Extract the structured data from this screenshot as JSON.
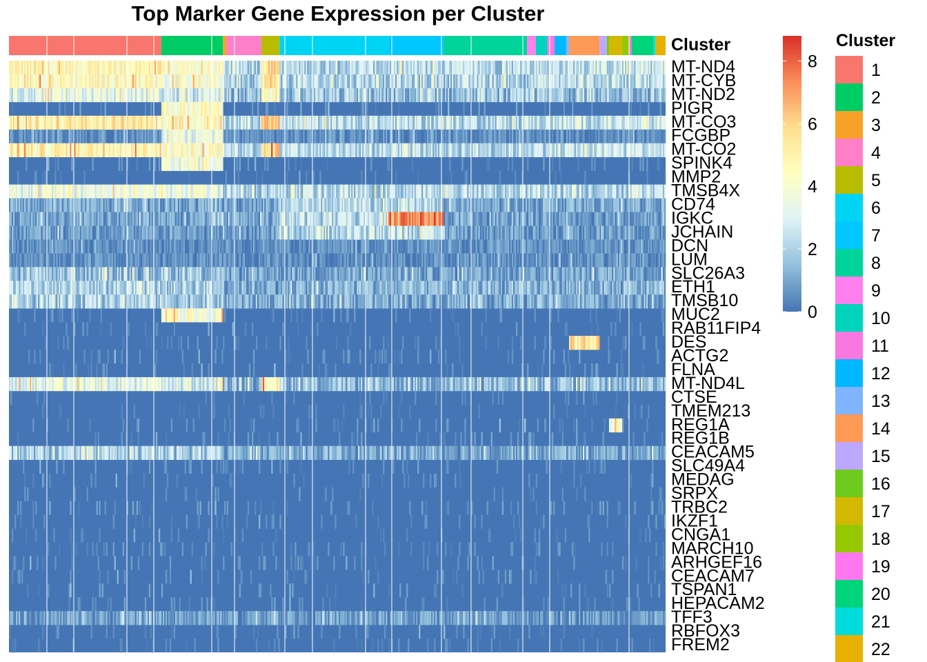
{
  "chart_data": {
    "type": "heatmap",
    "title": "Top Marker Gene Expression per Cluster",
    "annotation_label": "Cluster",
    "legend_title": "Cluster",
    "genes": [
      "MT-ND4",
      "MT-CYB",
      "MT-ND2",
      "PIGR",
      "MT-CO3",
      "FCGBP",
      "MT-CO2",
      "SPINK4",
      "MMP2",
      "TMSB4X",
      "CD74",
      "IGKC",
      "JCHAIN",
      "DCN",
      "LUM",
      "SLC26A3",
      "ETH1",
      "TMSB10",
      "MUC2",
      "RAB11FIP4",
      "DES",
      "ACTG2",
      "FLNA",
      "MT-ND4L",
      "CTSE",
      "TMEM213",
      "REG1A",
      "REG1B",
      "CEACAM5",
      "SLC49A4",
      "MEDAG",
      "SRPX",
      "TRBC2",
      "IKZF1",
      "CNGA1",
      "MARCH10",
      "ARHGEF16",
      "CEACAM7",
      "TSPAN1",
      "HEPACAM2",
      "TFF3",
      "RBFOX3",
      "FREM2"
    ],
    "clusters": [
      {
        "label": "1",
        "color": "#F8766D",
        "cells": 210
      },
      {
        "label": "2",
        "color": "#00CC66",
        "cells": 85
      },
      {
        "label": "3",
        "color": "#F8A128",
        "cells": 5
      },
      {
        "label": "4",
        "color": "#FF7FC8",
        "cells": 48
      },
      {
        "label": "5",
        "color": "#B8BC00",
        "cells": 25
      },
      {
        "label": "6",
        "color": "#00D4F5",
        "cells": 150
      },
      {
        "label": "7",
        "color": "#00C8FF",
        "cells": 76
      },
      {
        "label": "8",
        "color": "#00D49A",
        "cells": 115
      },
      {
        "label": "9",
        "color": "#FF7FF0",
        "cells": 12
      },
      {
        "label": "10",
        "color": "#00D4BC",
        "cells": 16
      },
      {
        "label": "11",
        "color": "#F877E0",
        "cells": 10
      },
      {
        "label": "12",
        "color": "#00B8FF",
        "cells": 16
      },
      {
        "label": "13",
        "color": "#80B4FF",
        "cells": 4
      },
      {
        "label": "14",
        "color": "#FF9955",
        "cells": 42
      },
      {
        "label": "15",
        "color": "#BCA8FF",
        "cells": 10
      },
      {
        "label": "16",
        "color": "#6CCB1C",
        "cells": 3
      },
      {
        "label": "17",
        "color": "#D4B800",
        "cells": 18
      },
      {
        "label": "18",
        "color": "#96C800",
        "cells": 10
      },
      {
        "label": "19",
        "color": "#FF77F0",
        "cells": 3
      },
      {
        "label": "20",
        "color": "#00D47A",
        "cells": 30
      },
      {
        "label": "21",
        "color": "#00DCDC",
        "cells": 3
      },
      {
        "label": "22",
        "color": "#E8B000",
        "cells": 14
      }
    ],
    "color_scale": {
      "min": 0,
      "max": 8.8,
      "ticks": [
        0,
        2,
        4,
        6,
        8
      ],
      "colors": [
        "#4575B4",
        "#91BFDB",
        "#E0F3F8",
        "#FFFFBF",
        "#FEE090",
        "#FC8D59",
        "#D73027"
      ]
    },
    "highlights": [
      {
        "gene": "IGKC",
        "cluster": "7",
        "level": 7.2
      },
      {
        "gene": "DES",
        "cluster": "14",
        "level": 5.5
      },
      {
        "gene": "MT-CO3",
        "cluster": "5",
        "level": 6.8
      },
      {
        "gene": "PIGR",
        "cluster": "2",
        "level": 4.3
      },
      {
        "gene": "MUC2",
        "cluster": "2",
        "level": 4.0
      },
      {
        "gene": "REG1A",
        "cluster": "17",
        "level": 4.0
      },
      {
        "gene": "MT-ND4L",
        "cluster": "5",
        "level": 4.8
      }
    ]
  }
}
